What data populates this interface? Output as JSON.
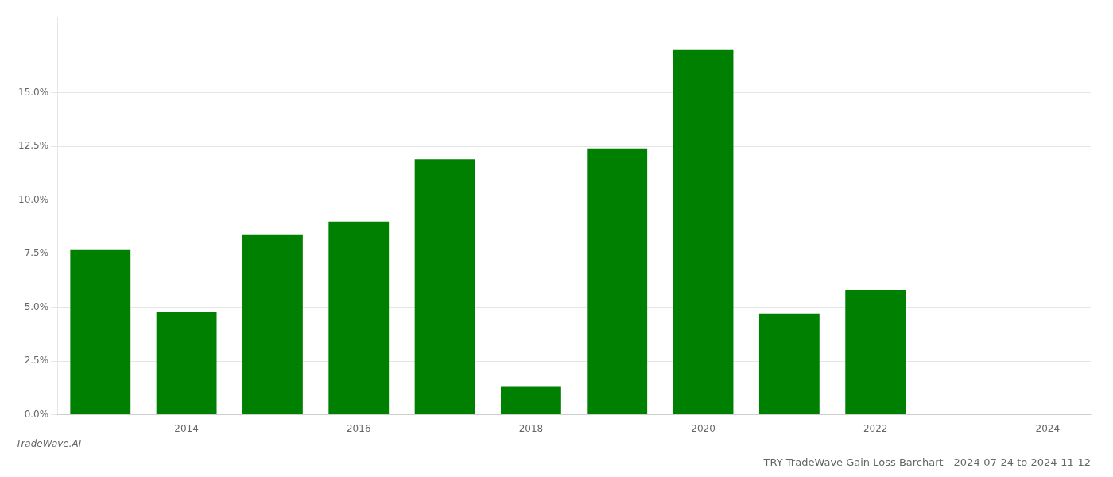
{
  "chart_data": {
    "type": "bar",
    "title": "TRY TradeWave Gain Loss Barchart - 2024-07-24 to 2024-11-12",
    "annotations": [
      "TradeWave.AI"
    ],
    "x": [
      2013,
      2014,
      2015,
      2016,
      2017,
      2018,
      2019,
      2020,
      2021,
      2022,
      2023
    ],
    "values": [
      0.077,
      0.048,
      0.084,
      0.09,
      0.119,
      0.013,
      0.124,
      0.17,
      0.047,
      0.058,
      0.0
    ],
    "color": "#008000",
    "xlim": [
      2012.5,
      2024.5
    ],
    "xticks": [
      2014,
      2016,
      2018,
      2020,
      2022,
      2024
    ],
    "ylim": [
      0,
      0.185
    ],
    "yticks": [
      {
        "value": 0.0,
        "label": "0.0%"
      },
      {
        "value": 0.025,
        "label": "2.5%"
      },
      {
        "value": 0.05,
        "label": "5.0%"
      },
      {
        "value": 0.075,
        "label": "7.5%"
      },
      {
        "value": 0.1,
        "label": "10.0%"
      },
      {
        "value": 0.125,
        "label": "12.5%"
      },
      {
        "value": 0.15,
        "label": "15.0%"
      }
    ],
    "grid": true
  }
}
